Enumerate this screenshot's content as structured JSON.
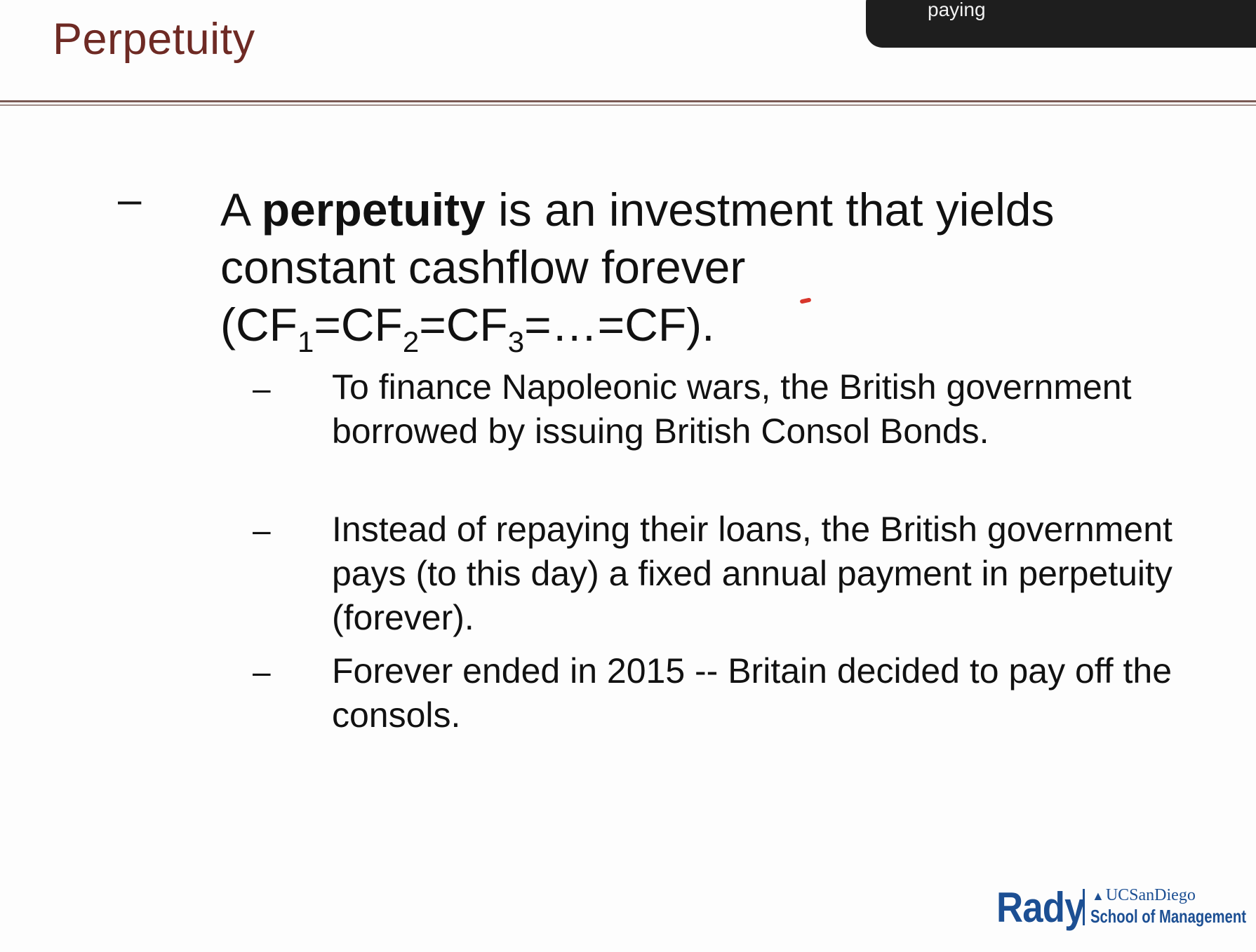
{
  "slide": {
    "title": "Perpetuity",
    "overlay_text": "paying",
    "main_bullet": {
      "dash": "–",
      "prefix": "A ",
      "bold_term": "perpetuity",
      "text_after": " is an investment that yields constant cashflow forever",
      "formula": {
        "open": "(CF",
        "sub1": "1",
        "eq1": "=CF",
        "sub2": "2",
        "eq2": "=CF",
        "sub3": "3",
        "tail": "=…=CF)."
      }
    },
    "sub_bullets": [
      {
        "dash": "–",
        "text": "To finance Napoleonic wars, the British government borrowed by issuing British Consol Bonds."
      },
      {
        "dash": "–",
        "text": "Instead of repaying their loans, the British government pays (to this day) a fixed annual payment in perpetuity (forever)."
      },
      {
        "dash": "–",
        "text": "Forever ended in 2015 -- Britain decided to pay off the consols."
      }
    ]
  },
  "logo": {
    "rady": "Rady",
    "ucsd": "UCSanDiego",
    "school": "School of Management"
  },
  "colors": {
    "title": "#6e2a24",
    "logo": "#1c4f93",
    "annotation": "#d8362c",
    "overlay": "#1e1e1e"
  }
}
